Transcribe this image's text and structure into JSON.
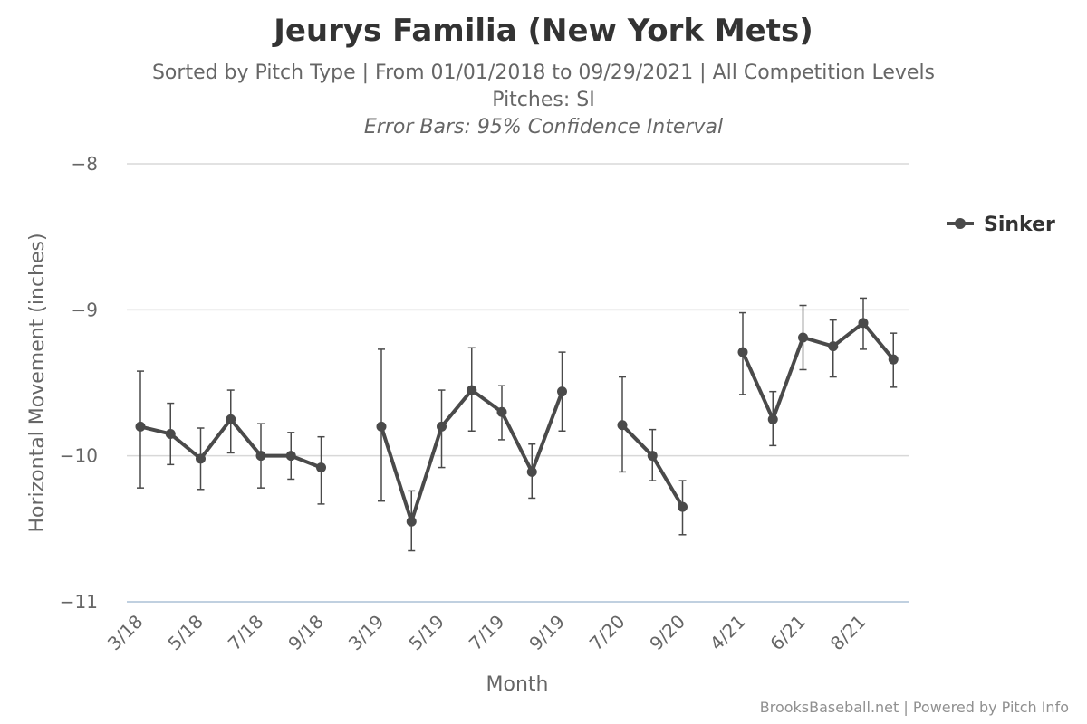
{
  "header": {
    "title": "Jeurys Familia (New York Mets)",
    "subtitle_line1": "Sorted by Pitch Type | From 01/01/2018 to 09/29/2021 | All Competition Levels",
    "subtitle_line2": "Pitches: SI",
    "subtitle_line3": "Error Bars: 95% Confidence Interval"
  },
  "credits": "BrooksBaseball.net | Powered by Pitch Info",
  "colors": {
    "series": "#4a4a4a",
    "grid": "#d8d8d8",
    "axis": "#c0d0e0",
    "text": "#666666"
  },
  "chart_data": {
    "type": "line",
    "title": "Jeurys Familia (New York Mets)",
    "xlabel": "Month",
    "ylabel": "Horizontal Movement (inches)",
    "ylim": [
      -11,
      -8
    ],
    "yticks": [
      "−8",
      "−9",
      "−10",
      "−11"
    ],
    "ytick_values": [
      -8,
      -9,
      -10,
      -11
    ],
    "xticks": [
      "3/18",
      "5/18",
      "7/18",
      "9/18",
      "3/19",
      "5/19",
      "7/19",
      "9/19",
      "7/20",
      "9/20",
      "4/21",
      "6/21",
      "8/21"
    ],
    "xtick_index": [
      0,
      2,
      4,
      6,
      8,
      10,
      12,
      14,
      16,
      18,
      20,
      22,
      24
    ],
    "legend": {
      "label": "Sinker",
      "position": "right"
    },
    "series": [
      {
        "name": "Sinker",
        "segments": [
          {
            "start_index": 0,
            "values": [
              -9.8,
              -9.85,
              -10.02,
              -9.75,
              -10.0,
              -10.0,
              -10.08
            ],
            "upper": [
              -9.42,
              -9.64,
              -9.81,
              -9.55,
              -9.78,
              -9.84,
              -9.87
            ],
            "lower": [
              -10.22,
              -10.06,
              -10.23,
              -9.98,
              -10.22,
              -10.16,
              -10.33
            ]
          },
          {
            "start_index": 8,
            "values": [
              -9.8,
              -10.45,
              -9.8,
              -9.55,
              -9.7,
              -10.11,
              -9.56
            ],
            "upper": [
              -9.27,
              -10.24,
              -9.55,
              -9.26,
              -9.52,
              -9.92,
              -9.29
            ],
            "lower": [
              -10.31,
              -10.65,
              -10.08,
              -9.83,
              -9.89,
              -10.29,
              -9.83
            ]
          },
          {
            "start_index": 16,
            "values": [
              -9.79,
              -10.0,
              -10.35
            ],
            "upper": [
              -9.46,
              -9.82,
              -10.17
            ],
            "lower": [
              -10.11,
              -10.17,
              -10.54
            ]
          },
          {
            "start_index": 20,
            "values": [
              -9.29,
              -9.75,
              -9.19,
              -9.25,
              -9.09,
              -9.34
            ],
            "upper": [
              -9.02,
              -9.56,
              -8.97,
              -9.07,
              -8.92,
              -9.16
            ],
            "lower": [
              -9.58,
              -9.93,
              -9.41,
              -9.46,
              -9.27,
              -9.53
            ]
          }
        ]
      }
    ]
  }
}
